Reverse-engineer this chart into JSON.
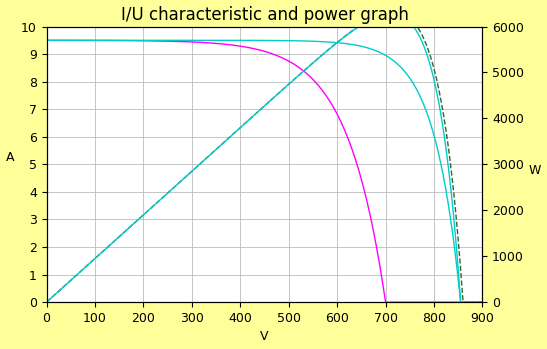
{
  "title": "I/U characteristic and power graph",
  "xlabel": "V",
  "ylabel_left": "A",
  "ylabel_right": "W",
  "background_color": "#ffff99",
  "plot_bg_color": "#ffffff",
  "xlim": [
    0,
    900
  ],
  "ylim_left": [
    0,
    10
  ],
  "ylim_right": [
    0,
    6000
  ],
  "xticks": [
    0,
    100,
    200,
    300,
    400,
    500,
    600,
    700,
    800,
    900
  ],
  "yticks_left": [
    0,
    1,
    2,
    3,
    4,
    5,
    6,
    7,
    8,
    9,
    10
  ],
  "yticks_right": [
    0,
    1000,
    2000,
    3000,
    4000,
    5000,
    6000
  ],
  "magenta": {
    "color": "#ff00ff",
    "Isc": 9.5,
    "Voc": 700,
    "Impp": 7.55,
    "Vmpp": 575
  },
  "cyan": {
    "color": "#00cccc",
    "Isc": 9.5,
    "Voc": 855,
    "Impp": 8.55,
    "Vmpp": 730
  },
  "green_dashed": {
    "color": "#336633",
    "linestyle": "--",
    "Isc": 9.5,
    "Voc": 860,
    "Impp": 9.0,
    "Vmpp": 700
  },
  "grid_color": "#bbbbbb",
  "title_fontsize": 12,
  "tick_fontsize": 9
}
